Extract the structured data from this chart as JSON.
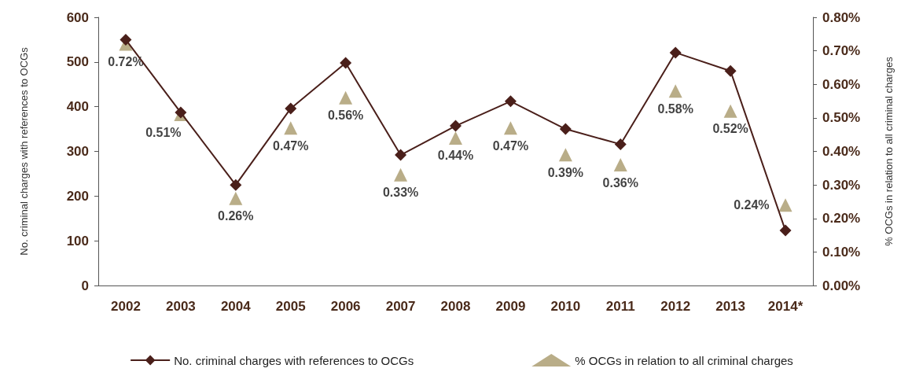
{
  "chart_data": {
    "type": "line",
    "categories": [
      "2002",
      "2003",
      "2004",
      "2005",
      "2006",
      "2007",
      "2008",
      "2009",
      "2010",
      "2011",
      "2012",
      "2013",
      "2014*"
    ],
    "ylabel": "No. criminal charges with references to OCGs",
    "y2label": "% OCGs in relation to all criminal charges",
    "ylim": [
      0,
      600
    ],
    "yticks": [
      0,
      100,
      200,
      300,
      400,
      500,
      600
    ],
    "y2lim": [
      0,
      0.8
    ],
    "y2ticks": [
      {
        "value": 0,
        "label": "0.00%"
      },
      {
        "value": 0.1,
        "label": "0.10%"
      },
      {
        "value": 0.2,
        "label": "0.20%"
      },
      {
        "value": 0.3,
        "label": "0.30%"
      },
      {
        "value": 0.4,
        "label": "0.40%"
      },
      {
        "value": 0.5,
        "label": "0.50%"
      },
      {
        "value": 0.6,
        "label": "0.60%"
      },
      {
        "value": 0.7,
        "label": "0.70%"
      },
      {
        "value": 0.8,
        "label": "0.80%"
      }
    ],
    "grid": false,
    "legend": "bottom",
    "line_style": "solid",
    "series": [
      {
        "name": "No. criminal charges with references to OCGs",
        "marker": "diamond",
        "color": "#4a1f1a",
        "values": [
          550,
          387,
          225,
          396,
          498,
          292,
          357,
          412,
          350,
          316,
          521,
          480,
          123
        ]
      },
      {
        "name": "% OCGs in relation to all criminal charges",
        "type": "scatter",
        "marker": "triangle",
        "axis": "y2",
        "color": "#a8986a",
        "values": [
          0.72,
          0.51,
          0.26,
          0.47,
          0.56,
          0.33,
          0.44,
          0.47,
          0.39,
          0.36,
          0.58,
          0.52,
          0.24
        ],
        "value_labels": [
          "0.72%",
          "0.51%",
          "0.26%",
          "0.47%",
          "0.56%",
          "0.33%",
          "0.44%",
          "0.47%",
          "0.39%",
          "0.36%",
          "0.58%",
          "0.52%",
          "0.24%"
        ]
      }
    ]
  }
}
